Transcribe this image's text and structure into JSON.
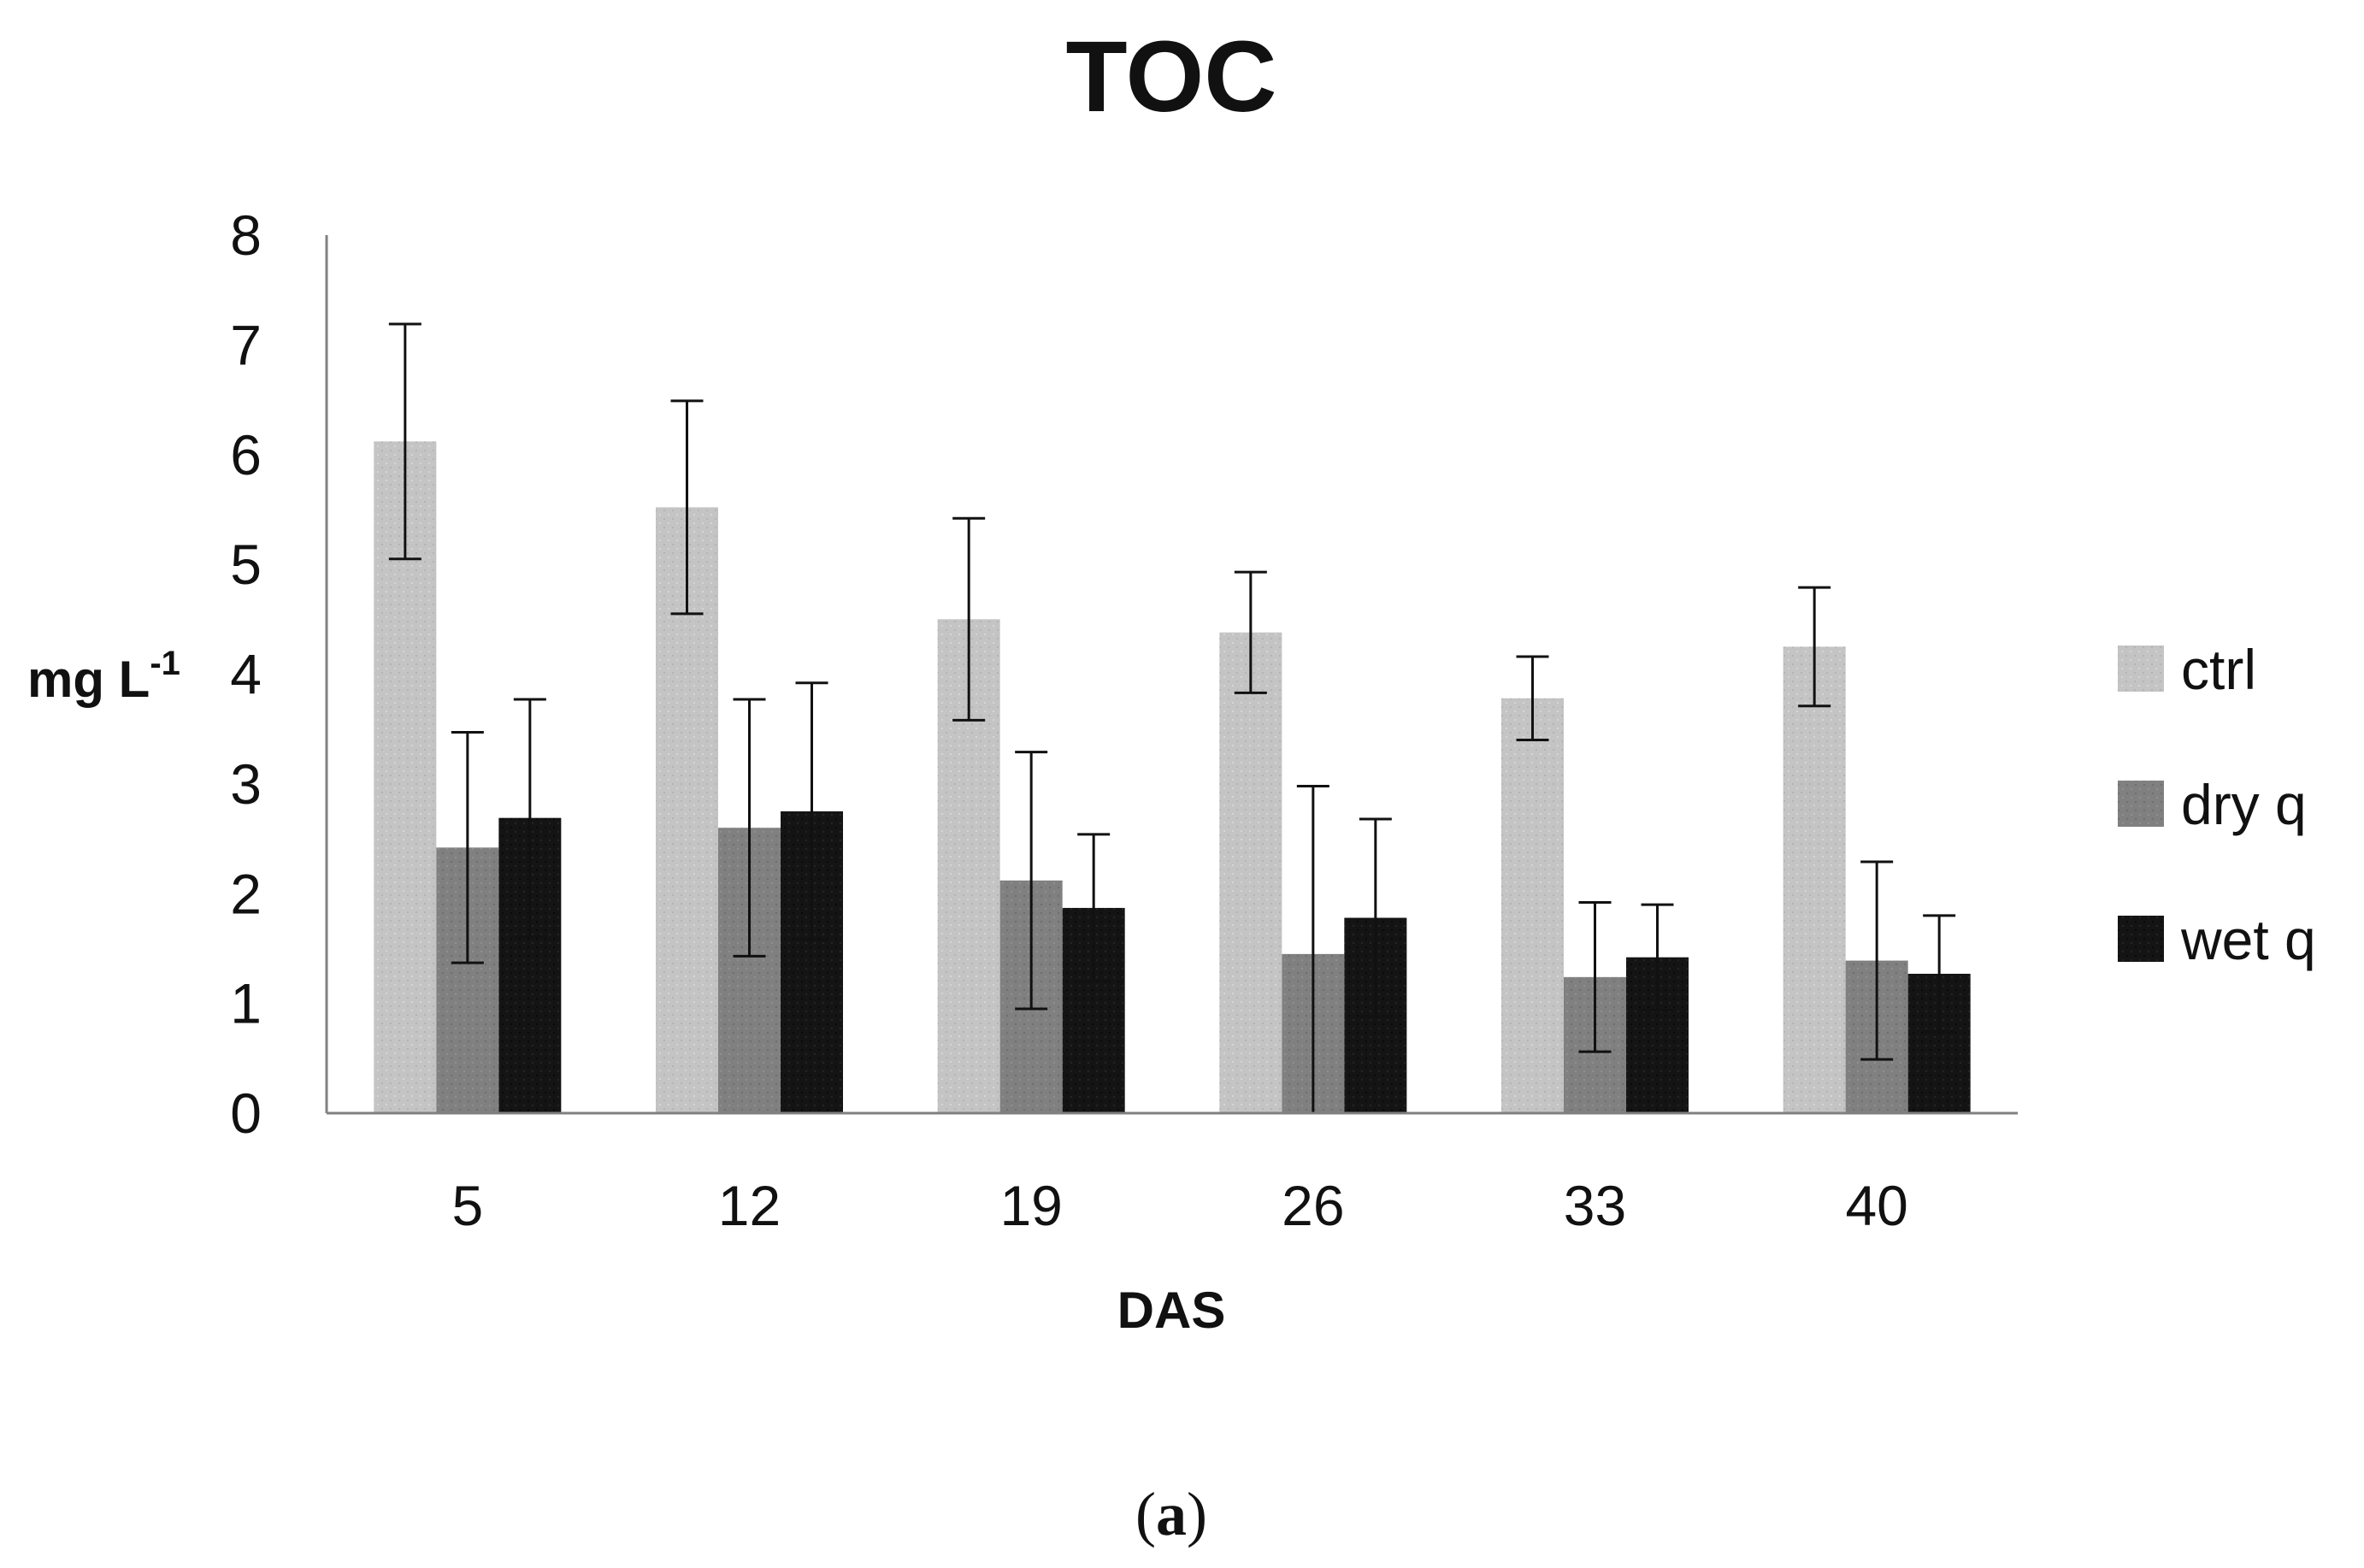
{
  "chart_data": {
    "type": "bar",
    "title": "TOC",
    "xlabel": "DAS",
    "ylabel_main": "mg L",
    "ylabel_sup": "-1",
    "ylim": [
      0,
      8
    ],
    "yticks": [
      "0",
      "1",
      "2",
      "3",
      "4",
      "5",
      "6",
      "7",
      "8"
    ],
    "categories": [
      "5",
      "12",
      "19",
      "26",
      "33",
      "40"
    ],
    "legend_position": "right",
    "series": [
      {
        "name": "ctrl",
        "color": "#c4c4c4",
        "values": [
          6.12,
          5.52,
          4.5,
          4.38,
          3.78,
          4.25
        ],
        "errors": [
          1.07,
          0.97,
          0.92,
          0.55,
          0.38,
          0.54
        ]
      },
      {
        "name": "dry q",
        "color": "#808080",
        "values": [
          2.42,
          2.6,
          2.12,
          1.45,
          1.24,
          1.39
        ],
        "errors": [
          1.05,
          1.17,
          1.17,
          1.53,
          0.68,
          0.9
        ]
      },
      {
        "name": "wet q",
        "color": "#141414",
        "values": [
          2.69,
          2.75,
          1.87,
          1.78,
          1.42,
          1.27
        ],
        "errors": [
          1.08,
          1.17,
          0.67,
          0.9,
          0.48,
          0.53
        ]
      }
    ],
    "grid": false
  },
  "caption": {
    "open": "(",
    "letter": "a",
    "close": ")"
  }
}
